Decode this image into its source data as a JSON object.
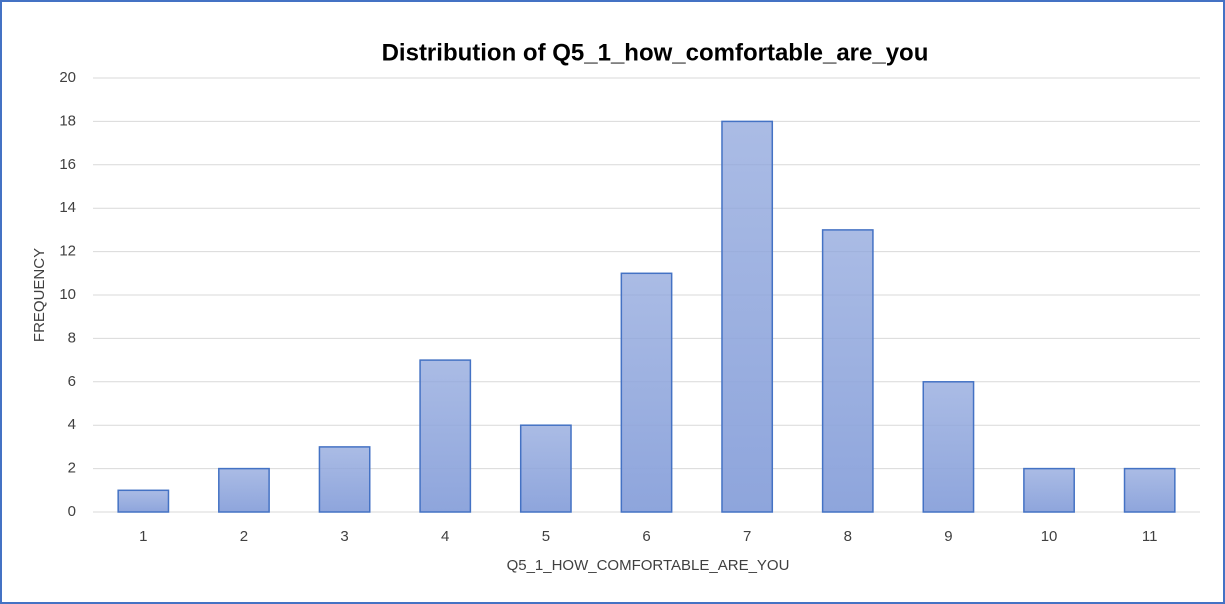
{
  "chart_data": {
    "type": "bar",
    "title": "Distribution  of Q5_1_how_comfortable_are_you",
    "xlabel": "Q5_1_HOW_COMFORTABLE_ARE_YOU",
    "ylabel": "FREQUENCY",
    "categories": [
      "1",
      "2",
      "3",
      "4",
      "5",
      "6",
      "7",
      "8",
      "9",
      "10",
      "11"
    ],
    "values": [
      1,
      2,
      3,
      7,
      4,
      11,
      18,
      13,
      6,
      2,
      2
    ],
    "color": "#8ea5dc",
    "edgecolor": "#4472c4",
    "ylim": [
      0,
      20
    ],
    "yticks": [
      0,
      2,
      4,
      6,
      8,
      10,
      12,
      14,
      16,
      18,
      20
    ],
    "grid": true
  }
}
